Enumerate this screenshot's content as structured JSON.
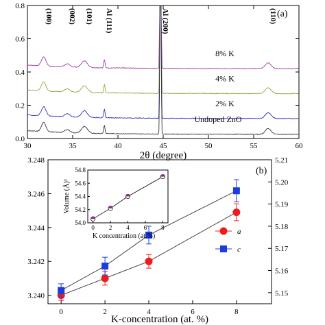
{
  "chart_data": [
    {
      "type": "line",
      "panel_label": "(a)",
      "xlabel": "2θ (degree)",
      "ylabel": "",
      "xlim": [
        30,
        60
      ],
      "ylim": [
        0,
        0.8
      ],
      "x_ticks": [
        "30",
        "35",
        "40",
        "45",
        "50",
        "55",
        "60"
      ],
      "y_ticks": [
        "0.0",
        "0.2",
        "0.4",
        "0.6",
        "0.8"
      ],
      "peak_labels": [
        {
          "label": "(100)",
          "x": 31.8
        },
        {
          "label": "(002)",
          "x": 34.4
        },
        {
          "label": "(101)",
          "x": 36.3
        },
        {
          "label": "Al (111)",
          "x": 38.5
        },
        {
          "label": "Al (200)",
          "x": 44.7
        },
        {
          "label": "(110)",
          "x": 56.6
        }
      ],
      "series": [
        {
          "name": "8% K",
          "color": "#a03ca0",
          "baseline": 0.42
        },
        {
          "name": "4% K",
          "color": "#a0a03c",
          "baseline": 0.27
        },
        {
          "name": "2% K",
          "color": "#2e2ecc",
          "baseline": 0.12
        },
        {
          "name": "Undoped ZnO",
          "color": "#333333",
          "baseline": 0.025
        }
      ]
    },
    {
      "type": "line",
      "panel_label": "(b)",
      "xlabel": "K-concentration (at. %)",
      "x": [
        0,
        2,
        4,
        8
      ],
      "xlim": [
        -0.6,
        9.6
      ],
      "x_ticks": [
        "0",
        "2",
        "4",
        "6",
        "8"
      ],
      "ylim_left": [
        3.2395,
        3.248
      ],
      "ylim_right": [
        5.145,
        5.21
      ],
      "y_ticks_left": [
        "3.240",
        "3.242",
        "3.244",
        "3.246",
        "3.248"
      ],
      "y_ticks_right": [
        "5.15",
        "5.16",
        "5.17",
        "5.18",
        "5.19",
        "5.20",
        "5.21"
      ],
      "series": [
        {
          "name": "a",
          "axis": "left",
          "color": "#ee1c1c",
          "marker": "circle",
          "values": [
            3.24,
            3.241,
            3.242,
            3.2449
          ],
          "errors": [
            0.0003,
            0.0004,
            0.0004,
            0.0005
          ]
        },
        {
          "name": "c",
          "axis": "right",
          "color": "#1c3ce0",
          "marker": "square",
          "values": [
            5.151,
            5.162,
            5.176,
            5.196
          ],
          "errors": [
            0.003,
            0.004,
            0.004,
            0.005
          ]
        }
      ],
      "inset": {
        "xlabel": "K concentration (at.%)",
        "ylabel": "Volume (Å)³",
        "x": [
          0,
          2,
          4,
          8
        ],
        "values": [
          54.06,
          54.22,
          54.4,
          54.7
        ],
        "xlim": [
          -0.6,
          8.6
        ],
        "ylim": [
          54.0,
          54.8
        ],
        "x_ticks": [
          "0",
          "2",
          "4",
          "6",
          "8"
        ],
        "y_ticks": [
          "54.0",
          "54.2",
          "54.4",
          "54.6",
          "54.8"
        ]
      }
    }
  ]
}
